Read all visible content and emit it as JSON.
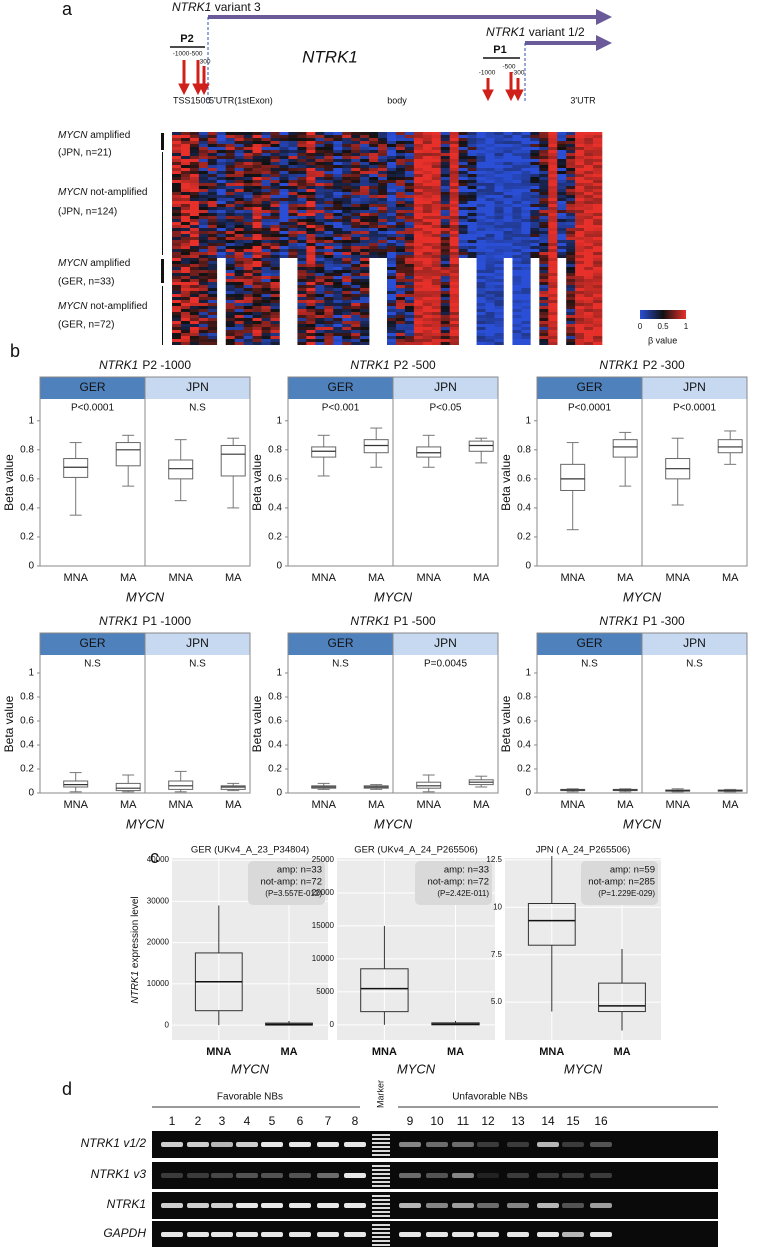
{
  "panel_a": {
    "label": "a",
    "variant3": {
      "gene": "NTRK1",
      "text": "variant 3"
    },
    "variant12": {
      "gene": "NTRK1",
      "text": "variant 1/2"
    },
    "gene": "NTRK1",
    "promoters": [
      {
        "name": "P2",
        "positions": [
          "-1000",
          "-500",
          "-300"
        ]
      },
      {
        "name": "P1",
        "positions": [
          "-1000",
          "-500",
          "-300"
        ]
      }
    ],
    "regions": [
      "TSS1500",
      "5'UTR(1stExon)",
      "body",
      "3'UTR"
    ],
    "rows": [
      {
        "gene": "MYCN",
        "status": "amplified",
        "cohort": "(JPN, n=21)"
      },
      {
        "gene": "MYCN",
        "status": "not-amplified",
        "cohort": "(JPN, n=124)"
      },
      {
        "gene": "MYCN",
        "status": "amplified",
        "cohort": "(GER, n=33)"
      },
      {
        "gene": "MYCN",
        "status": "not-amplified",
        "cohort": "(GER, n=72)"
      }
    ],
    "legend": {
      "ticks": [
        0,
        0.5,
        1
      ],
      "title": "β value"
    }
  },
  "panel_b": {
    "label": "b",
    "plots": [
      {
        "type": "box",
        "gene": "NTRK1",
        "probe": "P2  -1000",
        "groups": [
          "GER",
          "JPN"
        ],
        "p_values": [
          "P<0.0001",
          "N.S"
        ],
        "categories": [
          "MNA",
          "MA",
          "MNA",
          "MA"
        ],
        "boxes": [
          {
            "low": 0.35,
            "q1": 0.61,
            "median": 0.68,
            "q3": 0.74,
            "high": 0.85
          },
          {
            "low": 0.55,
            "q1": 0.69,
            "median": 0.8,
            "q3": 0.85,
            "high": 0.9
          },
          {
            "low": 0.45,
            "q1": 0.6,
            "median": 0.67,
            "q3": 0.73,
            "high": 0.87
          },
          {
            "low": 0.4,
            "q1": 0.62,
            "median": 0.77,
            "q3": 0.83,
            "high": 0.88
          }
        ],
        "ylim": [
          0,
          1.15
        ],
        "yticks": [
          0,
          0.2,
          0.4,
          0.6,
          0.8,
          1
        ],
        "ylabel": "Beta value",
        "xlabel": "MYCN"
      },
      {
        "type": "box",
        "gene": "NTRK1",
        "probe": "P2  -500",
        "groups": [
          "GER",
          "JPN"
        ],
        "p_values": [
          "P<0.001",
          "P<0.05"
        ],
        "categories": [
          "MNA",
          "MA",
          "MNA",
          "MA"
        ],
        "boxes": [
          {
            "low": 0.62,
            "q1": 0.75,
            "median": 0.79,
            "q3": 0.82,
            "high": 0.9
          },
          {
            "low": 0.68,
            "q1": 0.78,
            "median": 0.83,
            "q3": 0.87,
            "high": 0.95
          },
          {
            "low": 0.68,
            "q1": 0.75,
            "median": 0.78,
            "q3": 0.82,
            "high": 0.9
          },
          {
            "low": 0.71,
            "q1": 0.79,
            "median": 0.83,
            "q3": 0.86,
            "high": 0.88
          }
        ],
        "ylim": [
          0,
          1.15
        ],
        "yticks": [
          0,
          0.2,
          0.4,
          0.6,
          0.8,
          1
        ],
        "ylabel": "Beta value",
        "xlabel": "MYCN"
      },
      {
        "type": "box",
        "gene": "NTRK1",
        "probe": "P2  -300",
        "groups": [
          "GER",
          "JPN"
        ],
        "p_values": [
          "P<0.0001",
          "P<0.0001"
        ],
        "categories": [
          "MNA",
          "MA",
          "MNA",
          "MA"
        ],
        "boxes": [
          {
            "low": 0.25,
            "q1": 0.52,
            "median": 0.6,
            "q3": 0.7,
            "high": 0.85
          },
          {
            "low": 0.55,
            "q1": 0.75,
            "median": 0.82,
            "q3": 0.87,
            "high": 0.92
          },
          {
            "low": 0.42,
            "q1": 0.6,
            "median": 0.67,
            "q3": 0.74,
            "high": 0.88
          },
          {
            "low": 0.7,
            "q1": 0.78,
            "median": 0.82,
            "q3": 0.87,
            "high": 0.93
          }
        ],
        "ylim": [
          0,
          1.15
        ],
        "yticks": [
          0,
          0.2,
          0.4,
          0.6,
          0.8,
          1
        ],
        "ylabel": "Beta value",
        "xlabel": "MYCN"
      },
      {
        "type": "box",
        "gene": "NTRK1",
        "probe": "P1  -1000",
        "groups": [
          "GER",
          "JPN"
        ],
        "p_values": [
          "N.S",
          "N.S"
        ],
        "categories": [
          "MNA",
          "MA",
          "MNA",
          "MA"
        ],
        "boxes": [
          {
            "low": 0.01,
            "q1": 0.05,
            "median": 0.07,
            "q3": 0.1,
            "high": 0.17
          },
          {
            "low": 0.01,
            "q1": 0.02,
            "median": 0.04,
            "q3": 0.08,
            "high": 0.15
          },
          {
            "low": 0.01,
            "q1": 0.03,
            "median": 0.06,
            "q3": 0.1,
            "high": 0.18
          },
          {
            "low": 0.02,
            "q1": 0.03,
            "median": 0.05,
            "q3": 0.06,
            "high": 0.08
          }
        ],
        "ylim": [
          0,
          1.15
        ],
        "yticks": [
          0,
          0.2,
          0.4,
          0.6,
          0.8,
          1
        ],
        "ylabel": "Beta value",
        "xlabel": "MYCN"
      },
      {
        "type": "box",
        "gene": "NTRK1",
        "probe": "P1  -500",
        "groups": [
          "GER",
          "JPN"
        ],
        "p_values": [
          "N.S",
          "P=0.0045"
        ],
        "categories": [
          "MNA",
          "MA",
          "MNA",
          "MA"
        ],
        "boxes": [
          {
            "low": 0.03,
            "q1": 0.04,
            "median": 0.05,
            "q3": 0.06,
            "high": 0.08
          },
          {
            "low": 0.03,
            "q1": 0.04,
            "median": 0.05,
            "q3": 0.06,
            "high": 0.07
          },
          {
            "low": 0.01,
            "q1": 0.04,
            "median": 0.06,
            "q3": 0.09,
            "high": 0.15
          },
          {
            "low": 0.05,
            "q1": 0.07,
            "median": 0.09,
            "q3": 0.11,
            "high": 0.14
          }
        ],
        "ylim": [
          0,
          1.15
        ],
        "yticks": [
          0,
          0.2,
          0.4,
          0.6,
          0.8,
          1
        ],
        "ylabel": "Beta value",
        "xlabel": "MYCN"
      },
      {
        "type": "box",
        "gene": "NTRK1",
        "probe": "P1  -300",
        "groups": [
          "GER",
          "JPN"
        ],
        "p_values": [
          "N.S",
          "N.S"
        ],
        "categories": [
          "MNA",
          "MA",
          "MNA",
          "MA"
        ],
        "boxes": [
          {
            "low": 0.01,
            "q1": 0.02,
            "median": 0.025,
            "q3": 0.03,
            "high": 0.035
          },
          {
            "low": 0.01,
            "q1": 0.02,
            "median": 0.025,
            "q3": 0.03,
            "high": 0.035
          },
          {
            "low": 0.01,
            "q1": 0.015,
            "median": 0.02,
            "q3": 0.025,
            "high": 0.035
          },
          {
            "low": 0.01,
            "q1": 0.015,
            "median": 0.02,
            "q3": 0.025,
            "high": 0.03
          }
        ],
        "ylim": [
          0,
          1.15
        ],
        "yticks": [
          0,
          0.2,
          0.4,
          0.6,
          0.8,
          1
        ],
        "ylabel": "Beta value",
        "xlabel": "MYCN"
      }
    ]
  },
  "panel_c": {
    "label": "c",
    "ylabel": {
      "gene": "NTRK1",
      "text": "expression level"
    },
    "plots": [
      {
        "type": "box",
        "title": "GER (UKv4_A_23_P34804)",
        "stats": [
          "amp: n=33",
          "not-amp: n=72",
          "(P=3.557E-012)"
        ],
        "categories": [
          "MNA",
          "MA"
        ],
        "boxes": [
          {
            "low": 0,
            "q1": 3500,
            "median": 10500,
            "q3": 17500,
            "high": 29000
          },
          {
            "low": 0,
            "q1": 0,
            "median": 200,
            "q3": 500,
            "high": 1000
          }
        ],
        "ylim": [
          -3600,
          40500
        ],
        "yticks": [
          0,
          10000,
          20000,
          30000,
          40000
        ],
        "xlabel": "MYCN"
      },
      {
        "type": "box",
        "title": "GER (UKv4_A_24_P265506)",
        "stats": [
          "amp: n=33",
          "not-amp: n=72",
          "(P=2.42E-011)"
        ],
        "categories": [
          "MNA",
          "MA"
        ],
        "boxes": [
          {
            "low": 0,
            "q1": 2000,
            "median": 5500,
            "q3": 8500,
            "high": 15000
          },
          {
            "low": 0,
            "q1": 0,
            "median": 100,
            "q3": 300,
            "high": 600
          }
        ],
        "ylim": [
          -2300,
          25300
        ],
        "yticks": [
          0,
          5000,
          10000,
          15000,
          20000,
          25000
        ],
        "xlabel": "MYCN"
      },
      {
        "type": "box",
        "title": "JPN ( A_24_P265506)",
        "stats": [
          "amp: n=59",
          "not-amp: n=285",
          "(P=1.229E-029)"
        ],
        "categories": [
          "MNA",
          "MA"
        ],
        "boxes": [
          {
            "low": 4.5,
            "q1": 8,
            "median": 9.3,
            "q3": 10.2,
            "high": 12.7
          },
          {
            "low": 3.5,
            "q1": 4.5,
            "median": 4.8,
            "q3": 6,
            "high": 7.8
          }
        ],
        "ylim": [
          3,
          12.6
        ],
        "yticks": [
          {
            "value": 5,
            "label": "5.0"
          },
          7.5,
          10,
          12.5
        ],
        "xlabel": "MYCN"
      }
    ]
  },
  "panel_d": {
    "label": "d",
    "groups": [
      "Favorable NBs",
      "Unfavorable NBs"
    ],
    "marker": "Marker",
    "lanes": [
      1,
      2,
      3,
      4,
      5,
      6,
      7,
      8,
      9,
      10,
      11,
      12,
      13,
      14,
      15,
      16
    ],
    "rows": [
      "NTRK1 v1/2",
      "NTRK1 v3",
      "NTRK1",
      "GAPDH"
    ]
  }
}
